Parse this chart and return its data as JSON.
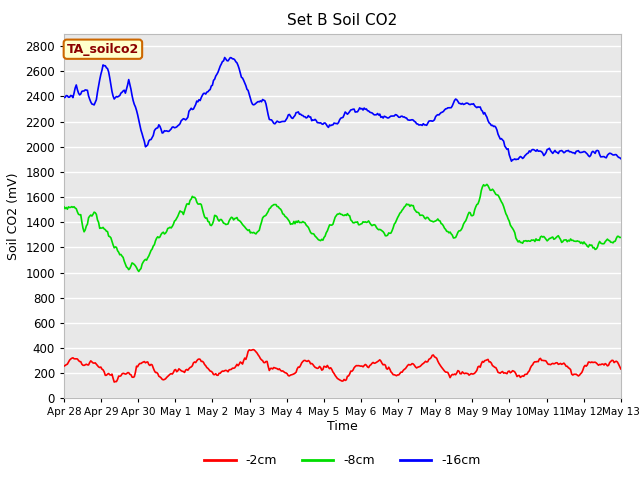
{
  "title": "Set B Soil CO2",
  "ylabel": "Soil CO2 (mV)",
  "xlabel": "Time",
  "annotation_text": "TA_soilco2",
  "annotation_bg": "#ffffcc",
  "annotation_border": "#cc6600",
  "ylim": [
    0,
    2900
  ],
  "bg_color": "#e8e8e8",
  "fig_color": "#ffffff",
  "grid_color": "#ffffff",
  "line_colors": {
    "red": "#ff0000",
    "green": "#00dd00",
    "blue": "#0000ff"
  },
  "legend_labels": [
    "-2cm",
    "-8cm",
    "-16cm"
  ],
  "xtick_labels": [
    "Apr 28",
    "Apr 29",
    "Apr 30",
    "May 1",
    "May 2",
    "May 3",
    "May 4",
    "May 5",
    "May 6",
    "May 7",
    "May 8",
    "May 9",
    "May 10",
    "May 11",
    "May 12",
    "May 13"
  ],
  "ytick_values": [
    0,
    200,
    400,
    600,
    800,
    1000,
    1200,
    1400,
    1600,
    1800,
    2000,
    2200,
    2400,
    2600,
    2800
  ],
  "num_points": 500
}
